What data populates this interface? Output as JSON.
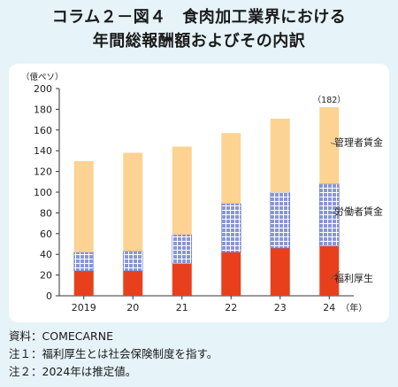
{
  "title_line1": "コラム２－図４　食肉加工業界における",
  "title_line2": "年間総報酬額およびその内訳",
  "chart_data": {
    "type": "bar",
    "stacked": true,
    "categories": [
      "2019",
      "20",
      "21",
      "22",
      "23",
      "24"
    ],
    "x_unit": "（年）",
    "y_unit": "（億ペソ）",
    "ylim": [
      0,
      200
    ],
    "yticks": [
      0,
      20,
      40,
      60,
      80,
      100,
      120,
      140,
      160,
      180,
      200
    ],
    "series": [
      {
        "name": "福利厚生",
        "values": [
          24,
          24,
          31,
          42,
          46,
          48
        ],
        "color": "#e8401c",
        "pattern": "solid"
      },
      {
        "name": "労働者賃金",
        "values": [
          18,
          19,
          28,
          47,
          54,
          60
        ],
        "color": "#8a96d6",
        "pattern": "grid"
      },
      {
        "name": "管理者賃金",
        "values": [
          88,
          95,
          85,
          68,
          71,
          74
        ],
        "color": "#fcd392",
        "pattern": "solid"
      }
    ],
    "annotations": [
      {
        "category": "24",
        "text": "（182）"
      }
    ],
    "grid": false
  },
  "notes": [
    "資料：COMECARNE",
    "注１：福利厚生とは社会保険制度を指す。",
    "注２：2024年は推定値。"
  ]
}
